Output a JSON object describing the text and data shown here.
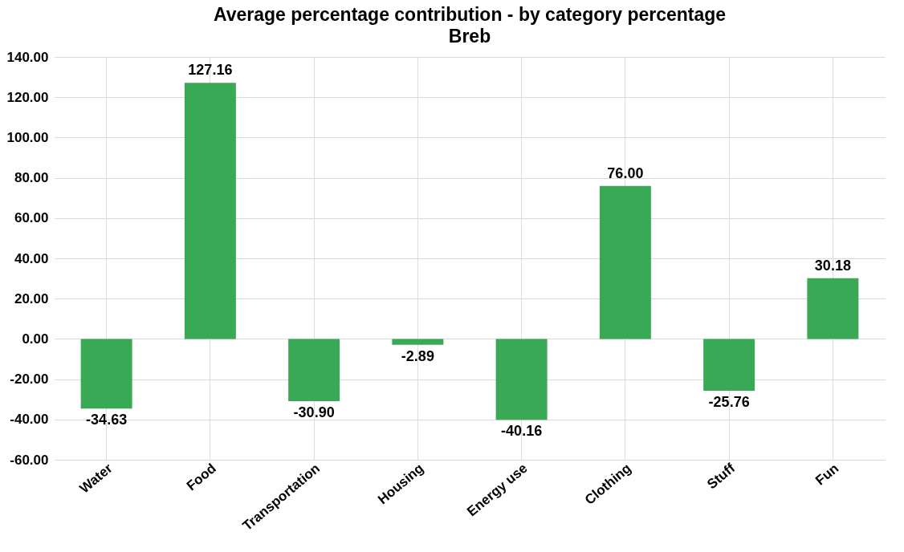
{
  "chart_data": {
    "type": "bar",
    "title": "Average percentage contribution - by category percentage",
    "subtitle": "Breb",
    "categories": [
      "Water",
      "Food",
      "Transportation",
      "Housing",
      "Energy use",
      "Clothing",
      "Stuff",
      "Fun"
    ],
    "values": [
      -34.63,
      127.16,
      -30.9,
      -2.89,
      -40.16,
      76.0,
      -25.76,
      30.18
    ],
    "value_labels": [
      "-34.63",
      "127.16",
      "-30.90",
      "-2.89",
      "-40.16",
      "76.00",
      "-25.76",
      "30.18"
    ],
    "color": "#3aa955",
    "ylim": [
      -60,
      140
    ],
    "yticks": [
      {
        "value": -60,
        "label": "-60.00"
      },
      {
        "value": -40,
        "label": "-40.00"
      },
      {
        "value": -20,
        "label": "-20.00"
      },
      {
        "value": 0,
        "label": "0.00"
      },
      {
        "value": 20,
        "label": "20.00"
      },
      {
        "value": 40,
        "label": "40.00"
      },
      {
        "value": 60,
        "label": "60.00"
      },
      {
        "value": 80,
        "label": "80.00"
      },
      {
        "value": 100,
        "label": "100.00"
      },
      {
        "value": 120,
        "label": "120.00"
      },
      {
        "value": 140,
        "label": "140.00"
      }
    ],
    "grid": true
  }
}
